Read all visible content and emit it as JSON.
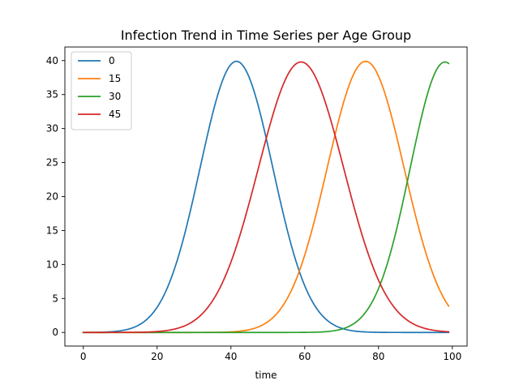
{
  "chart_data": {
    "type": "line",
    "title": "Infection Trend in Time Series per Age Group",
    "xlabel": "time",
    "ylabel": "",
    "xlim": [
      -5,
      104
    ],
    "ylim": [
      -2,
      42
    ],
    "xticks": [
      0,
      20,
      40,
      60,
      80,
      100
    ],
    "yticks": [
      0,
      5,
      10,
      15,
      20,
      25,
      30,
      35,
      40
    ],
    "grid": false,
    "legend_position": "top-left",
    "x_start": 0,
    "x_end": 99,
    "series": [
      {
        "name": "0",
        "color": "#1f77b4",
        "peak_x": 41.5,
        "peak_y": 39.9,
        "points": [
          [
            0,
            0
          ],
          [
            10,
            0.4
          ],
          [
            20,
            4.4
          ],
          [
            25,
            10.2
          ],
          [
            30,
            19.9
          ],
          [
            35,
            31.2
          ],
          [
            40,
            39.4
          ],
          [
            41.5,
            39.9
          ],
          [
            45,
            37.3
          ],
          [
            50,
            27.3
          ],
          [
            55,
            16.2
          ],
          [
            60,
            7.5
          ],
          [
            65,
            2.6
          ],
          [
            70,
            0.6
          ],
          [
            80,
            0
          ],
          [
            99,
            0
          ]
        ]
      },
      {
        "name": "15",
        "color": "#ff7f0e",
        "peak_x": 76.5,
        "peak_y": 39.9,
        "points": [
          [
            0,
            0
          ],
          [
            40,
            0
          ],
          [
            45,
            0.3
          ],
          [
            50,
            1.3
          ],
          [
            55,
            4.2
          ],
          [
            60,
            10.2
          ],
          [
            65,
            19.6
          ],
          [
            70,
            30.3
          ],
          [
            75,
            38.9
          ],
          [
            76.5,
            39.9
          ],
          [
            80,
            37.8
          ],
          [
            85,
            30.6
          ],
          [
            90,
            20.5
          ],
          [
            95,
            11.0
          ],
          [
            99,
            3.2
          ]
        ]
      },
      {
        "name": "30",
        "color": "#2ca02c",
        "peak_x": 98,
        "peak_y": 39.8,
        "points": [
          [
            0,
            0
          ],
          [
            60,
            0
          ],
          [
            65,
            0.2
          ],
          [
            70,
            1.0
          ],
          [
            75,
            3.4
          ],
          [
            80,
            8.5
          ],
          [
            85,
            17.1
          ],
          [
            90,
            27.4
          ],
          [
            95,
            36.6
          ],
          [
            98,
            39.8
          ],
          [
            99,
            39.6
          ]
        ]
      },
      {
        "name": "45",
        "color": "#d62728",
        "peak_x": 59,
        "peak_y": 39.8,
        "points": [
          [
            0,
            0
          ],
          [
            20,
            0
          ],
          [
            25,
            0.4
          ],
          [
            30,
            1.7
          ],
          [
            35,
            5.5
          ],
          [
            40,
            12.8
          ],
          [
            45,
            22.6
          ],
          [
            50,
            32.3
          ],
          [
            55,
            38.5
          ],
          [
            59,
            39.8
          ],
          [
            60,
            39.5
          ],
          [
            65,
            33.6
          ],
          [
            70,
            23.0
          ],
          [
            75,
            12.6
          ],
          [
            80,
            5.5
          ],
          [
            85,
            1.9
          ],
          [
            90,
            0.5
          ],
          [
            99,
            0
          ]
        ]
      }
    ]
  }
}
